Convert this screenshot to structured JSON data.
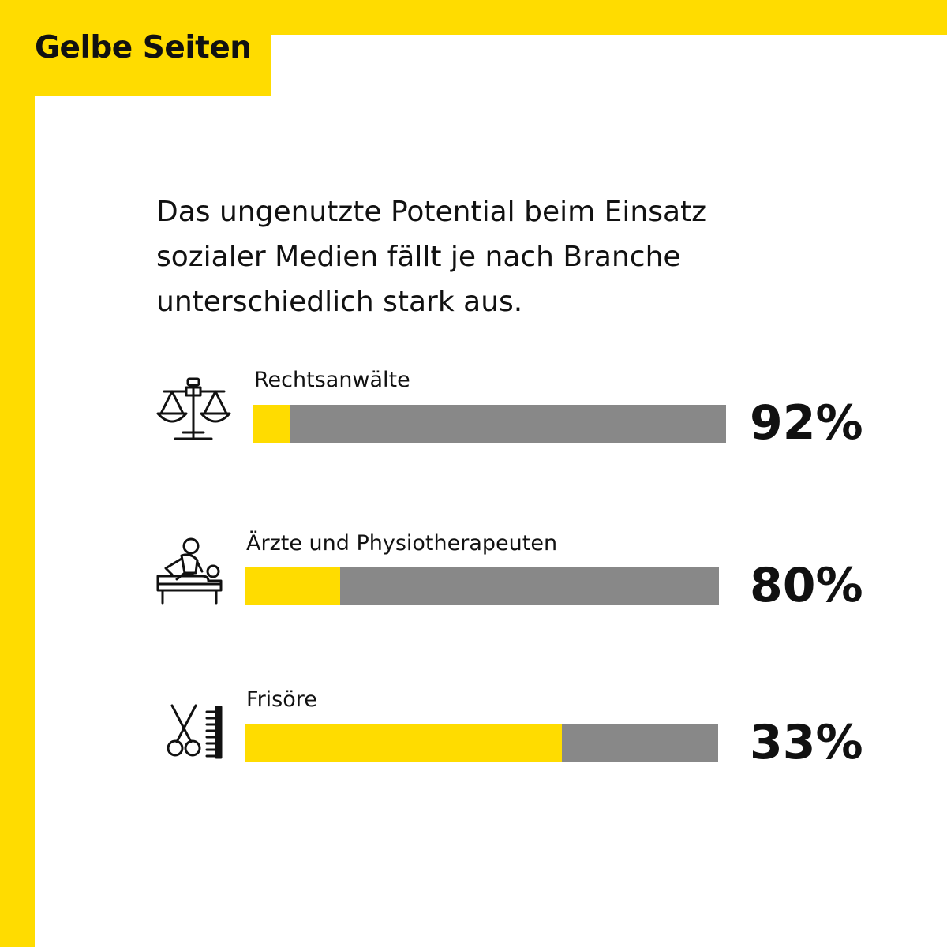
{
  "brand": {
    "logo_text": "Gelbe Seiten",
    "accent": "#ffdc00"
  },
  "headline": "Das ungenutzte Potential beim Einsatz sozialer Medien fällt je nach Branche unterschiedlich stark aus.",
  "chart_data": {
    "type": "bar",
    "orientation": "horizontal",
    "title": "Das ungenutzte Potential beim Einsatz sozialer Medien fällt je nach Branche unterschiedlich stark aus.",
    "unit": "%",
    "ylim": [
      0,
      100
    ],
    "categories": [
      "Rechtsanwälte",
      "Ärzte und Physiotherapeuten",
      "Frisöre"
    ],
    "values": [
      92,
      80,
      33
    ],
    "value_labels": [
      "92%",
      "80%",
      "33%"
    ],
    "icons": [
      "scales-icon",
      "massage-icon",
      "scissors-comb-icon"
    ],
    "colors": {
      "used_share": "#ffdc00",
      "unused_potential": "#888888"
    }
  }
}
